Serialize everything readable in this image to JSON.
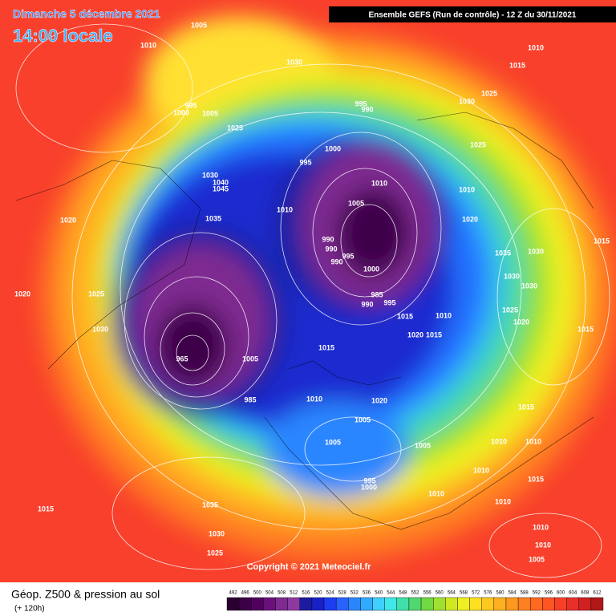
{
  "header": {
    "date": "Dimanche 5 décembre 2021",
    "time": "14:00 locale",
    "model": "Ensemble GEFS  (Run de contrôle)  -  12 Z du 30/11/2021"
  },
  "copyright": "Copyright © 2021 Meteociel.fr",
  "legend": {
    "title": "Géop. Z500 & pression au sol",
    "subtitle": "(+ 120h)",
    "scale": [
      492,
      496,
      500,
      504,
      508,
      512,
      516,
      520,
      524,
      528,
      532,
      536,
      540,
      544,
      548,
      552,
      556,
      560,
      564,
      568,
      572,
      576,
      580,
      584,
      588,
      592,
      596,
      600,
      604,
      608,
      612
    ],
    "colors": [
      "#2a0030",
      "#3c0048",
      "#520060",
      "#6a107a",
      "#7e2a90",
      "#8c3aa0",
      "#1c1aa0",
      "#1a20c8",
      "#1c3ef0",
      "#2a62ff",
      "#2a86ff",
      "#30aaff",
      "#40d0ff",
      "#40e8e8",
      "#40e0a8",
      "#50d870",
      "#70d840",
      "#a0e030",
      "#d0e820",
      "#f0f020",
      "#ffe020",
      "#ffc820",
      "#ffb020",
      "#ff9820",
      "#ff8020",
      "#ff6a20",
      "#ff5424",
      "#f84028",
      "#e83028",
      "#d02020",
      "#b01818"
    ]
  },
  "isobar_labels": [
    1005,
    1010,
    1030,
    1015,
    1010,
    1025,
    1030,
    995,
    990,
    995,
    1000,
    1005,
    1025,
    1000,
    1025,
    995,
    1030,
    1040,
    1045,
    1010,
    1010,
    1005,
    1010,
    1035,
    1020,
    1020,
    990,
    990,
    995,
    990,
    1000,
    1035,
    1030,
    1015,
    1030,
    1030,
    1020,
    1025,
    985,
    990,
    995,
    1015,
    1010,
    1025,
    1020,
    1030,
    1020,
    1015,
    1015,
    1015,
    965,
    1005,
    985,
    1010,
    1020,
    1015,
    1005,
    1005,
    1005,
    1010,
    1010,
    1010,
    995,
    1000,
    1010,
    1015,
    1010,
    1015,
    1035,
    1030,
    1010,
    1010,
    1025,
    1005
  ]
}
